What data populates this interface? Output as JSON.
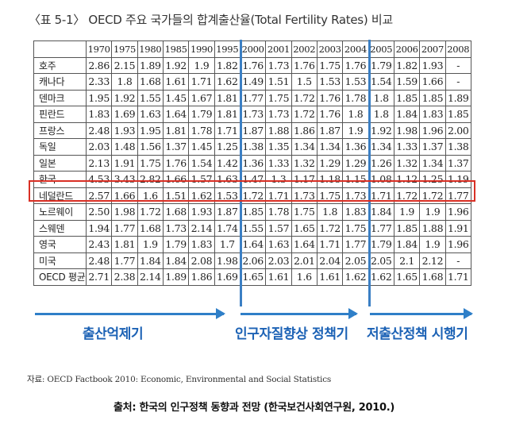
{
  "title": "〈표 5-1〉 OECD 주요 국가들의 합계출산율(Total Fertility Rates) 비교",
  "table": {
    "corner": "",
    "years": [
      "1970",
      "1975",
      "1980",
      "1985",
      "1990",
      "1995",
      "2000",
      "2001",
      "2002",
      "2003",
      "2004",
      "2005",
      "2006",
      "2007",
      "2008"
    ],
    "rows": [
      {
        "country": "호주",
        "values": [
          "2.86",
          "2.15",
          "1.89",
          "1.92",
          "1.9",
          "1.82",
          "1.76",
          "1.73",
          "1.76",
          "1.75",
          "1.76",
          "1.79",
          "1.82",
          "1.93",
          "-"
        ]
      },
      {
        "country": "캐나다",
        "values": [
          "2.33",
          "1.8",
          "1.68",
          "1.61",
          "1.71",
          "1.62",
          "1.49",
          "1.51",
          "1.5",
          "1.53",
          "1.53",
          "1.54",
          "1.59",
          "1.66",
          "-"
        ]
      },
      {
        "country": "덴마크",
        "values": [
          "1.95",
          "1.92",
          "1.55",
          "1.45",
          "1.67",
          "1.81",
          "1.77",
          "1.75",
          "1.72",
          "1.76",
          "1.78",
          "1.8",
          "1.85",
          "1.85",
          "1.89"
        ]
      },
      {
        "country": "핀란드",
        "values": [
          "1.83",
          "1.69",
          "1.63",
          "1.64",
          "1.79",
          "1.81",
          "1.73",
          "1.73",
          "1.72",
          "1.76",
          "1.8",
          "1.8",
          "1.84",
          "1.83",
          "1.85"
        ]
      },
      {
        "country": "프랑스",
        "values": [
          "2.48",
          "1.93",
          "1.95",
          "1.81",
          "1.78",
          "1.71",
          "1.87",
          "1.88",
          "1.86",
          "1.87",
          "1.9",
          "1.92",
          "1.98",
          "1.96",
          "2.00"
        ]
      },
      {
        "country": "독일",
        "values": [
          "2.03",
          "1.48",
          "1.56",
          "1.37",
          "1.45",
          "1.25",
          "1.38",
          "1.35",
          "1.34",
          "1.34",
          "1.36",
          "1.34",
          "1.33",
          "1.37",
          "1.38"
        ]
      },
      {
        "country": "일본",
        "values": [
          "2.13",
          "1.91",
          "1.75",
          "1.76",
          "1.54",
          "1.42",
          "1.36",
          "1.33",
          "1.32",
          "1.29",
          "1.29",
          "1.26",
          "1.32",
          "1.34",
          "1.37"
        ]
      },
      {
        "country": "한국",
        "values": [
          "4.53",
          "3.43",
          "2.82",
          "1.66",
          "1.57",
          "1.63",
          "1.47",
          "1.3",
          "1.17",
          "1.18",
          "1.15",
          "1.08",
          "1.12",
          "1.25",
          "1.19"
        ]
      },
      {
        "country": "네덜란드",
        "values": [
          "2.57",
          "1.66",
          "1.6",
          "1.51",
          "1.62",
          "1.53",
          "1.72",
          "1.71",
          "1.73",
          "1.75",
          "1.73",
          "1.71",
          "1.72",
          "1.72",
          "1.77"
        ]
      },
      {
        "country": "노르웨이",
        "values": [
          "2.50",
          "1.98",
          "1.72",
          "1.68",
          "1.93",
          "1.87",
          "1.85",
          "1.78",
          "1.75",
          "1.8",
          "1.83",
          "1.84",
          "1.9",
          "1.9",
          "1.96"
        ]
      },
      {
        "country": "스웨덴",
        "values": [
          "1.94",
          "1.77",
          "1.68",
          "1.73",
          "2.14",
          "1.74",
          "1.55",
          "1.57",
          "1.65",
          "1.72",
          "1.75",
          "1.77",
          "1.85",
          "1.88",
          "1.91"
        ]
      },
      {
        "country": "영국",
        "values": [
          "2.43",
          "1.81",
          "1.9",
          "1.79",
          "1.83",
          "1.7",
          "1.64",
          "1.63",
          "1.64",
          "1.71",
          "1.77",
          "1.79",
          "1.84",
          "1.9",
          "1.96"
        ]
      },
      {
        "country": "미국",
        "values": [
          "2.48",
          "1.77",
          "1.84",
          "1.84",
          "2.08",
          "1.98",
          "2.06",
          "2.03",
          "2.01",
          "2.04",
          "2.05",
          "2.05",
          "2.1",
          "2.12",
          "-"
        ]
      },
      {
        "country": "OECD 평균",
        "values": [
          "2.71",
          "2.38",
          "2.14",
          "1.89",
          "1.86",
          "1.69",
          "1.65",
          "1.61",
          "1.6",
          "1.61",
          "1.62",
          "1.62",
          "1.65",
          "1.68",
          "1.71"
        ]
      }
    ]
  },
  "phases": [
    {
      "label": "출산억제기"
    },
    {
      "label": "인구자질향상 정책기"
    },
    {
      "label": "저출산정책 시행기"
    }
  ],
  "source_note": "자료: OECD Factbook 2010: Economic, Environmental and Social Statistics",
  "citation": "출처: 한국의 인구정책 동향과 전망 (한국보건사회연구원, 2010.)",
  "colors": {
    "phase_blue": "#2f7fc8",
    "highlight_red": "#d93025"
  }
}
